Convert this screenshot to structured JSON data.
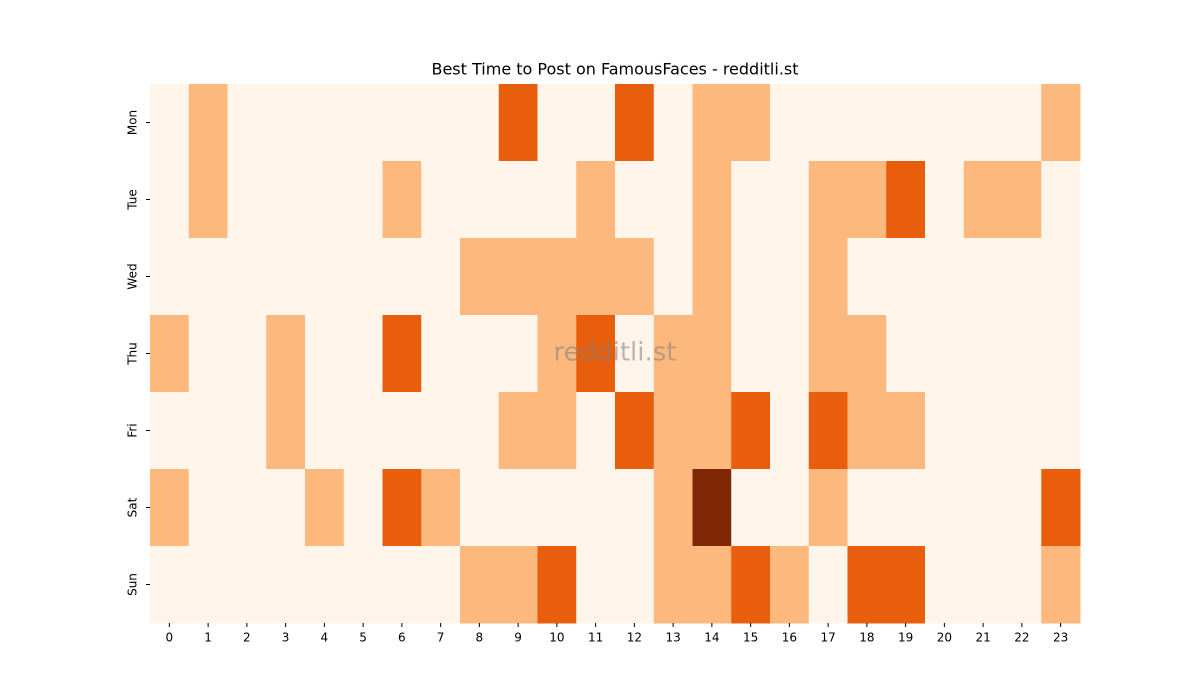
{
  "chart_data": {
    "type": "heatmap",
    "title": "Best Time to Post on FamousFaces - redditli.st",
    "annotation": "redditli.st",
    "categories": [
      0,
      1,
      2,
      3,
      4,
      5,
      6,
      7,
      8,
      9,
      10,
      11,
      12,
      13,
      14,
      15,
      16,
      17,
      18,
      19,
      20,
      21,
      22,
      23
    ],
    "rows": [
      "Mon",
      "Tue",
      "Wed",
      "Thu",
      "Fri",
      "Sat",
      "Sun"
    ],
    "values": [
      [
        0,
        1,
        0,
        0,
        0,
        0,
        0,
        0,
        0,
        2,
        0,
        0,
        2,
        0,
        1,
        1,
        0,
        0,
        0,
        0,
        0,
        0,
        0,
        1
      ],
      [
        0,
        1,
        0,
        0,
        0,
        0,
        1,
        0,
        0,
        0,
        0,
        1,
        0,
        0,
        1,
        0,
        0,
        1,
        1,
        2,
        0,
        1,
        1,
        0
      ],
      [
        0,
        0,
        0,
        0,
        0,
        0,
        0,
        0,
        1,
        1,
        1,
        1,
        1,
        0,
        1,
        0,
        0,
        1,
        0,
        0,
        0,
        0,
        0,
        0
      ],
      [
        1,
        0,
        0,
        1,
        0,
        0,
        2,
        0,
        0,
        0,
        1,
        2,
        0,
        1,
        1,
        0,
        0,
        1,
        1,
        0,
        0,
        0,
        0,
        0
      ],
      [
        0,
        0,
        0,
        1,
        0,
        0,
        0,
        0,
        0,
        1,
        1,
        0,
        2,
        1,
        1,
        2,
        0,
        2,
        1,
        1,
        0,
        0,
        0,
        0
      ],
      [
        1,
        0,
        0,
        0,
        1,
        0,
        2,
        1,
        0,
        0,
        0,
        0,
        0,
        1,
        3,
        0,
        0,
        1,
        0,
        0,
        0,
        0,
        0,
        2
      ],
      [
        0,
        0,
        0,
        0,
        0,
        0,
        0,
        0,
        1,
        1,
        2,
        0,
        0,
        1,
        1,
        2,
        1,
        0,
        2,
        2,
        0,
        0,
        0,
        1
      ]
    ],
    "zlim": [
      0,
      3
    ],
    "colorscale": [
      "#fff5eb",
      "#fdb97d",
      "#e95e0d",
      "#7f2704"
    ]
  }
}
